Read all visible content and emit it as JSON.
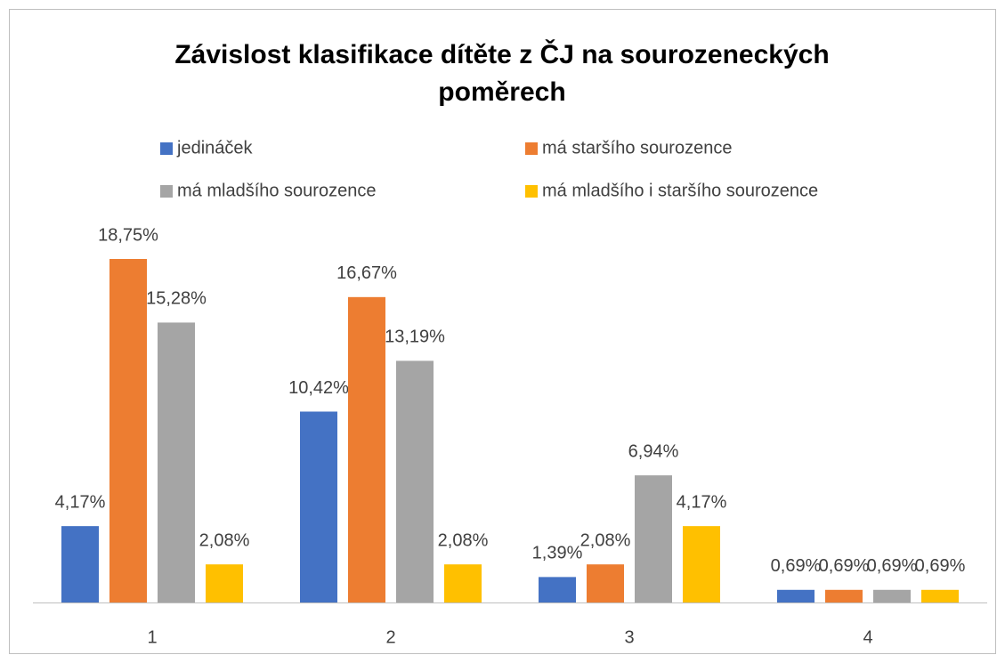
{
  "chart_data": {
    "type": "bar",
    "title": [
      "Závislost klasifikace dítěte z ČJ na sourozeneckých",
      "poměrech"
    ],
    "categories": [
      "1",
      "2",
      "3",
      "4"
    ],
    "series": [
      {
        "name": "jedináček",
        "color": "#4472c4",
        "values": [
          4.17,
          10.42,
          1.39,
          0.69
        ],
        "value_labels": [
          "4,17%",
          "10,42%",
          "1,39%",
          "0,69%"
        ]
      },
      {
        "name": "má staršího sourozence",
        "color": "#ed7d31",
        "values": [
          18.75,
          16.67,
          2.08,
          0.69
        ],
        "value_labels": [
          "18,75%",
          "16,67%",
          "2,08%",
          "0,69%"
        ]
      },
      {
        "name": "má mladšího sourozence",
        "color": "#a5a5a5",
        "values": [
          15.28,
          13.19,
          6.94,
          0.69
        ],
        "value_labels": [
          "15,28%",
          "13,19%",
          "6,94%",
          "0,69%"
        ]
      },
      {
        "name": "má mladšího i staršího sourozence",
        "color": "#ffc000",
        "values": [
          2.08,
          2.08,
          4.17,
          0.69
        ],
        "value_labels": [
          "2,08%",
          "2,08%",
          "4,17%",
          "0,69%"
        ]
      }
    ]
  }
}
